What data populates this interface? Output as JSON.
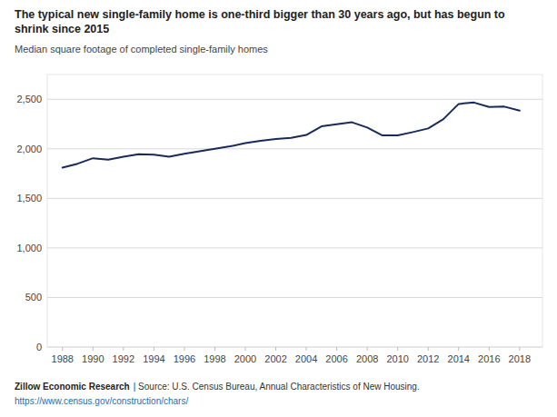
{
  "chart_data": {
    "type": "line",
    "title": "The typical new single-family home is one-third bigger than 30 years ago, but has begun to\nshrink since 2015",
    "subtitle": "Median square footage of completed single-family homes",
    "x": [
      1988,
      1989,
      1990,
      1991,
      1992,
      1993,
      1994,
      1995,
      1996,
      1997,
      1998,
      1999,
      2000,
      2001,
      2002,
      2003,
      2004,
      2005,
      2006,
      2007,
      2008,
      2009,
      2010,
      2011,
      2012,
      2013,
      2014,
      2015,
      2016,
      2017,
      2018
    ],
    "values": [
      1810,
      1850,
      1905,
      1890,
      1920,
      1945,
      1940,
      1920,
      1950,
      1975,
      2000,
      2025,
      2057,
      2080,
      2100,
      2110,
      2140,
      2227,
      2248,
      2268,
      2215,
      2135,
      2135,
      2169,
      2206,
      2300,
      2453,
      2467,
      2422,
      2426,
      2386
    ],
    "color": "#1a2b5a",
    "xlim": [
      1987.0,
      2019.5
    ],
    "xticks": [
      1988,
      1990,
      1992,
      1994,
      1996,
      1998,
      2000,
      2002,
      2004,
      2006,
      2008,
      2010,
      2012,
      2014,
      2016,
      2018
    ],
    "ylim": [
      0,
      2750
    ],
    "yticks": [
      0,
      500,
      {
        "value": 1000,
        "label": "1,000"
      },
      {
        "value": 1500,
        "label": "1,500"
      },
      {
        "value": 2000,
        "label": "2,000"
      },
      {
        "value": 2500,
        "label": "2,500"
      }
    ],
    "grid": true,
    "annotations": [
      "Zillow Economic Research",
      "| Source: U.S. Census Bureau, Annual Characteristics of New Housing.",
      "https://www.census.gov/construction/chars/"
    ]
  }
}
